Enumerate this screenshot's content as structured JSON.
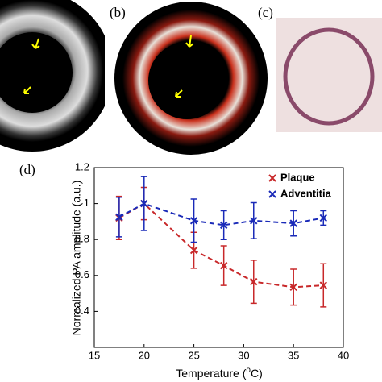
{
  "panel_labels": {
    "b": "(b)",
    "c": "(c)",
    "d": "(d)"
  },
  "chart_data": {
    "type": "line",
    "ylabel": "Normalized PA amplitude (a.u.)",
    "xlabel": [
      "Temperature (",
      "o",
      "C)"
    ],
    "x": [
      17.5,
      20,
      25,
      28,
      31,
      35,
      38
    ],
    "series": [
      {
        "name": "Plaque",
        "color": "#c8282a",
        "values": [
          0.92,
          1.0,
          0.74,
          0.655,
          0.565,
          0.535,
          0.545
        ],
        "errors": [
          0.12,
          0.09,
          0.1,
          0.11,
          0.12,
          0.1,
          0.12
        ]
      },
      {
        "name": "Adventitia",
        "color": "#1a2ab8",
        "values": [
          0.925,
          1.0,
          0.905,
          0.88,
          0.905,
          0.89,
          0.92
        ],
        "errors": [
          0.11,
          0.15,
          0.12,
          0.08,
          0.1,
          0.07,
          0.04
        ]
      }
    ],
    "xlim": [
      15,
      40
    ],
    "xticks": [
      15,
      20,
      25,
      30,
      35,
      40
    ],
    "ylim": [
      0.2,
      1.2
    ],
    "yticks": [
      0.4,
      0.6,
      0.8,
      1,
      1.2
    ],
    "legend": "upper-right"
  }
}
